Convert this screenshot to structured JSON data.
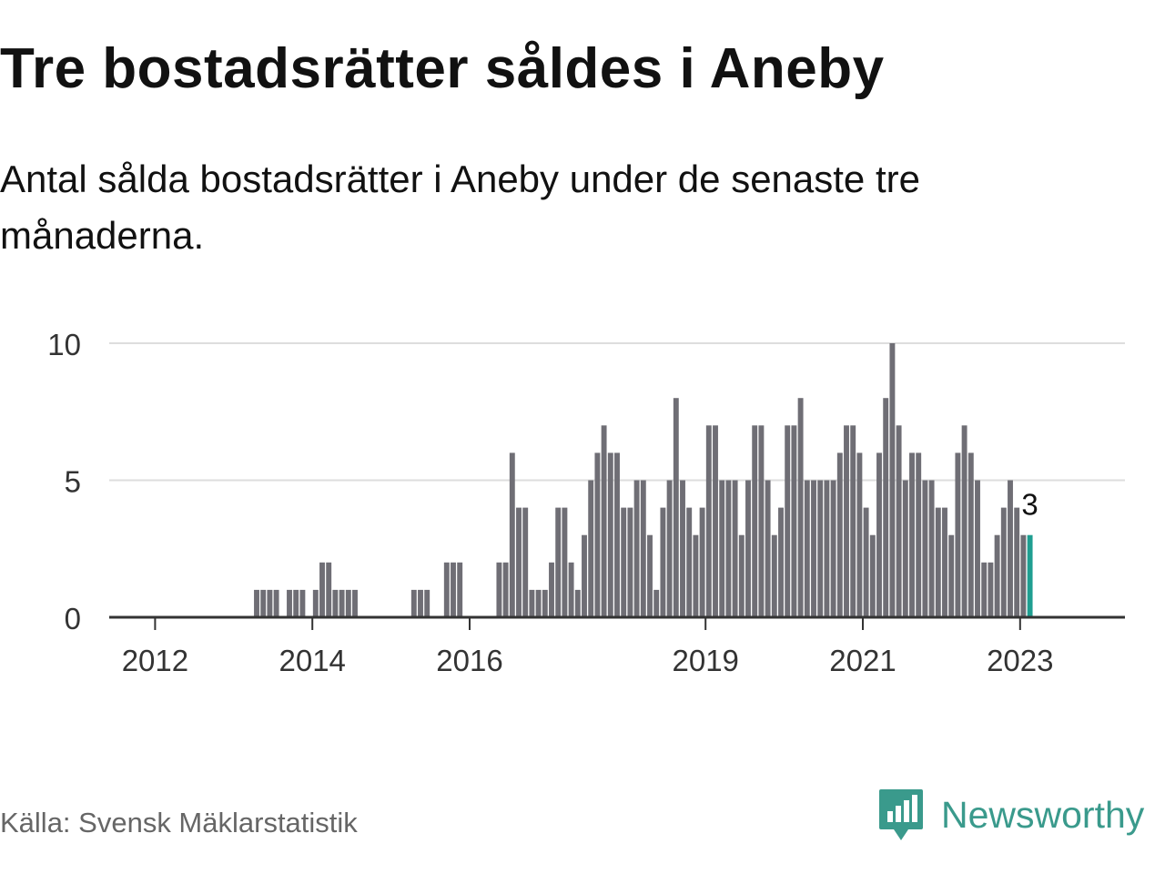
{
  "title": "Tre bostadsrätter såldes i Aneby",
  "subtitle": "Antal sålda bostadsrätter i Aneby under de senaste tre månaderna.",
  "source": "Källa: Svensk Mäklarstatistik",
  "brand": {
    "name": "Newsworthy",
    "icon": "newsworthy-logo-icon",
    "color": "#3a9a8c"
  },
  "colors": {
    "bar": "#6f6e75",
    "highlight": "#1f9e91",
    "grid": "#dddddd",
    "axis": "#333333"
  },
  "chart_data": {
    "type": "bar",
    "title": "Tre bostadsrätter såldes i Aneby",
    "xlabel": "",
    "ylabel": "",
    "ylim": [
      0,
      10
    ],
    "yticks": [
      0,
      5,
      10
    ],
    "xlim_months": [
      -7,
      148
    ],
    "xticks": [
      {
        "label": "2012",
        "month": 0
      },
      {
        "label": "2014",
        "month": 24
      },
      {
        "label": "2016",
        "month": 48
      },
      {
        "label": "2019",
        "month": 84
      },
      {
        "label": "2021",
        "month": 108
      },
      {
        "label": "2023",
        "month": 132
      }
    ],
    "start_month": 15,
    "values": [
      1,
      1,
      1,
      1,
      0,
      1,
      1,
      1,
      0,
      1,
      2,
      2,
      1,
      1,
      1,
      1,
      0,
      0,
      0,
      0,
      0,
      0,
      0,
      0,
      1,
      1,
      1,
      0,
      0,
      2,
      2,
      2,
      0,
      0,
      0,
      0,
      0,
      2,
      2,
      6,
      4,
      4,
      1,
      1,
      1,
      2,
      4,
      4,
      2,
      1,
      3,
      5,
      6,
      7,
      6,
      6,
      4,
      4,
      5,
      5,
      3,
      1,
      4,
      5,
      8,
      5,
      4,
      3,
      4,
      7,
      7,
      5,
      5,
      5,
      3,
      5,
      7,
      7,
      5,
      3,
      4,
      7,
      7,
      8,
      5,
      5,
      5,
      5,
      5,
      6,
      7,
      7,
      6,
      4,
      3,
      6,
      8,
      10,
      7,
      5,
      6,
      6,
      5,
      5,
      4,
      4,
      3,
      6,
      7,
      6,
      5,
      2,
      2,
      3,
      4,
      5,
      4,
      3,
      3
    ],
    "highlight_last": true,
    "annotation": {
      "text": "3",
      "target": "last"
    }
  }
}
